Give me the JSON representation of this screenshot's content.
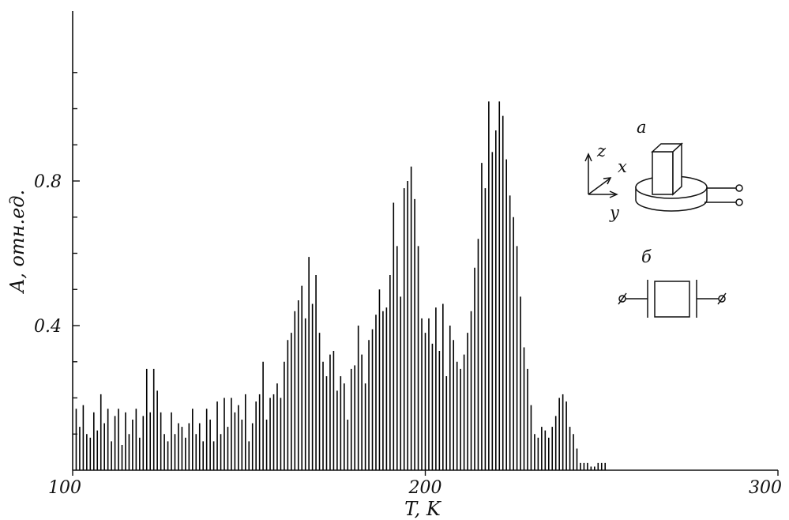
{
  "chart_data": {
    "type": "bar",
    "title": "",
    "xlabel": "T, K",
    "ylabel": "A, отн.ед.",
    "xlim": [
      100,
      300
    ],
    "ylim": [
      0,
      1.27
    ],
    "x_ticks": [
      {
        "value": 100,
        "label": "100"
      },
      {
        "value": 200,
        "label": "200"
      },
      {
        "value": 300,
        "label": "300"
      }
    ],
    "y_ticks": [
      {
        "value": 0.4,
        "label": "0.4"
      },
      {
        "value": 0.8,
        "label": "0.8"
      }
    ],
    "y_minor_ticks": [
      0.1,
      0.2,
      0.3,
      0.5,
      0.6,
      0.7,
      0.9,
      1.0,
      1.1
    ],
    "grid": false,
    "series": [
      {
        "x": [
          101,
          102,
          103,
          104,
          105,
          106,
          107,
          108,
          109,
          110,
          111,
          112,
          113,
          114,
          115,
          116,
          117,
          118,
          119,
          120,
          121,
          122,
          123,
          124,
          125,
          126,
          127,
          128,
          129,
          130,
          131,
          132,
          133,
          134,
          135,
          136,
          137,
          138,
          139,
          140,
          141,
          142,
          143,
          144,
          145,
          146,
          147,
          148,
          149,
          150,
          151,
          152,
          153,
          154,
          155,
          156,
          157,
          158,
          159,
          160,
          161,
          162,
          163,
          164,
          165,
          166,
          167,
          168,
          169,
          170,
          171,
          172,
          173,
          174,
          175,
          176,
          177,
          178,
          179,
          180,
          181,
          182,
          183,
          184,
          185,
          186,
          187,
          188,
          189,
          190,
          191,
          192,
          193,
          194,
          195,
          196,
          197,
          198,
          199,
          200,
          201,
          202,
          203,
          204,
          205,
          206,
          207,
          208,
          209,
          210,
          211,
          212,
          213,
          214,
          215,
          216,
          217,
          218,
          219,
          220,
          221,
          222,
          223,
          224,
          225,
          226,
          227,
          228,
          229,
          230,
          231,
          232,
          233,
          234,
          235,
          236,
          237,
          238,
          239,
          240,
          241,
          242,
          243,
          244,
          245,
          246,
          247,
          248,
          249,
          250,
          251
        ],
        "values": [
          0.17,
          0.12,
          0.18,
          0.1,
          0.09,
          0.16,
          0.11,
          0.21,
          0.13,
          0.17,
          0.08,
          0.15,
          0.17,
          0.07,
          0.16,
          0.1,
          0.14,
          0.17,
          0.09,
          0.15,
          0.28,
          0.16,
          0.28,
          0.22,
          0.16,
          0.1,
          0.08,
          0.16,
          0.1,
          0.13,
          0.12,
          0.09,
          0.13,
          0.17,
          0.1,
          0.13,
          0.08,
          0.17,
          0.14,
          0.08,
          0.19,
          0.1,
          0.2,
          0.12,
          0.2,
          0.16,
          0.18,
          0.14,
          0.21,
          0.08,
          0.13,
          0.19,
          0.21,
          0.3,
          0.14,
          0.2,
          0.21,
          0.24,
          0.2,
          0.3,
          0.36,
          0.38,
          0.44,
          0.47,
          0.51,
          0.42,
          0.59,
          0.46,
          0.54,
          0.38,
          0.3,
          0.26,
          0.32,
          0.33,
          0.22,
          0.26,
          0.24,
          0.14,
          0.28,
          0.29,
          0.4,
          0.32,
          0.24,
          0.36,
          0.39,
          0.43,
          0.5,
          0.44,
          0.45,
          0.54,
          0.74,
          0.62,
          0.48,
          0.78,
          0.8,
          0.84,
          0.75,
          0.62,
          0.42,
          0.38,
          0.42,
          0.35,
          0.45,
          0.33,
          0.46,
          0.26,
          0.4,
          0.36,
          0.3,
          0.28,
          0.32,
          0.38,
          0.44,
          0.56,
          0.64,
          0.85,
          0.78,
          1.02,
          0.88,
          0.94,
          1.02,
          0.98,
          0.86,
          0.76,
          0.7,
          0.62,
          0.48,
          0.34,
          0.28,
          0.18,
          0.1,
          0.09,
          0.12,
          0.11,
          0.09,
          0.12,
          0.15,
          0.2,
          0.21,
          0.19,
          0.12,
          0.1,
          0.06,
          0.02,
          0.02,
          0.02,
          0.01,
          0.01,
          0.02,
          0.02,
          0.02
        ]
      }
    ],
    "annotations": [
      {
        "text": "a"
      },
      {
        "text": "б"
      },
      {
        "text": "z"
      },
      {
        "text": "x"
      },
      {
        "text": "y"
      }
    ]
  }
}
